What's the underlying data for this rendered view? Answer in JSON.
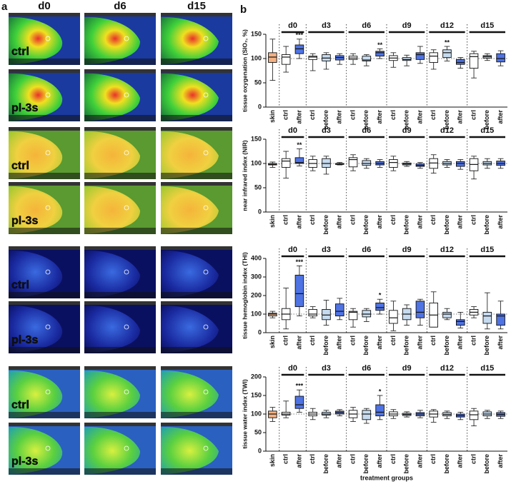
{
  "panel_a": {
    "label": "a",
    "columns": [
      "d0",
      "d6",
      "d15"
    ],
    "rows": [
      "ctrl",
      "pl-3s",
      "ctrl",
      "pl-3s",
      "ctrl",
      "pl-3s",
      "ctrl",
      "pl-3s"
    ]
  },
  "panel_b_label": "b",
  "chart_data": [
    {
      "type": "box",
      "ylabel": "tissue oxygenation (SIO₂, %)",
      "ylim": [
        0,
        150
      ],
      "yticks": [
        0,
        50,
        100,
        150
      ],
      "reference_line": 100,
      "categories": [
        "skin",
        "ctrl",
        "after",
        "ctrl",
        "before",
        "after",
        "ctrl",
        "before",
        "after",
        "ctrl",
        "before",
        "after",
        "ctrl",
        "before",
        "after",
        "ctrl",
        "before",
        "after"
      ],
      "groups": [
        "d0",
        "d3",
        "d6",
        "d9",
        "d12",
        "d15"
      ],
      "colors": {
        "skin": "#f4b183",
        "ctrl": "#ffffff",
        "before": "#c6dbef",
        "after": "#4f73e3"
      },
      "boxes": [
        [
          55,
          92,
          103,
          112,
          140
        ],
        [
          72,
          88,
          103,
          108,
          125
        ],
        [
          100,
          110,
          120,
          128,
          140
        ],
        [
          75,
          98,
          103,
          105,
          110
        ],
        [
          78,
          95,
          101,
          108,
          112
        ],
        [
          88,
          97,
          102,
          106,
          110
        ],
        [
          88,
          98,
          101,
          105,
          110
        ],
        [
          85,
          95,
          97,
          105,
          108
        ],
        [
          100,
          105,
          112,
          115,
          120
        ],
        [
          82,
          96,
          101,
          106,
          112
        ],
        [
          85,
          96,
          98,
          102,
          107
        ],
        [
          90,
          98,
          108,
          112,
          125
        ],
        [
          78,
          92,
          105,
          112,
          118
        ],
        [
          95,
          102,
          112,
          118,
          125
        ],
        [
          80,
          88,
          92,
          98,
          102
        ],
        [
          60,
          80,
          104,
          110,
          115
        ],
        [
          96,
          101,
          104,
          106,
          110
        ],
        [
          85,
          93,
          100,
          110,
          116
        ]
      ],
      "significance": [
        null,
        null,
        "***",
        null,
        null,
        null,
        null,
        null,
        "**",
        null,
        null,
        null,
        null,
        "**",
        null,
        null,
        null,
        null
      ]
    },
    {
      "type": "box",
      "ylabel": "near infrared index (NIR)",
      "ylim": [
        0,
        150
      ],
      "yticks": [
        0,
        50,
        100,
        150
      ],
      "reference_line": 100,
      "categories": [
        "skin",
        "ctrl",
        "after",
        "ctrl",
        "before",
        "after",
        "ctrl",
        "before",
        "after",
        "ctrl",
        "before",
        "after",
        "ctrl",
        "before",
        "after",
        "ctrl",
        "before",
        "after"
      ],
      "groups": [
        "d0",
        "d3",
        "d6",
        "d9",
        "d12",
        "d15"
      ],
      "colors": {
        "skin": "#f4b183",
        "ctrl": "#ffffff",
        "before": "#c6dbef",
        "after": "#4f73e3"
      },
      "boxes": [
        [
          92,
          97,
          98,
          100,
          103
        ],
        [
          70,
          92,
          105,
          110,
          125
        ],
        [
          95,
          100,
          102,
          112,
          130
        ],
        [
          85,
          92,
          100,
          108,
          115
        ],
        [
          78,
          92,
          100,
          110,
          115
        ],
        [
          97,
          98,
          99,
          100,
          102
        ],
        [
          85,
          93,
          108,
          112,
          118
        ],
        [
          90,
          96,
          100,
          106,
          110
        ],
        [
          92,
          97,
          100,
          104,
          108
        ],
        [
          85,
          92,
          102,
          108,
          115
        ],
        [
          94,
          97,
          99,
          101,
          104
        ],
        [
          90,
          94,
          96,
          99,
          102
        ],
        [
          80,
          90,
          101,
          110,
          118
        ],
        [
          92,
          97,
          100,
          104,
          108
        ],
        [
          88,
          94,
          100,
          104,
          108
        ],
        [
          68,
          85,
          98,
          110,
          115
        ],
        [
          90,
          97,
          100,
          104,
          110
        ],
        [
          90,
          96,
          100,
          105,
          110
        ]
      ],
      "significance": [
        null,
        null,
        "**",
        null,
        null,
        null,
        null,
        null,
        null,
        null,
        null,
        null,
        null,
        null,
        null,
        null,
        null,
        null
      ]
    },
    {
      "type": "box",
      "ylabel": "tissue hemoglobin index (THI)",
      "ylim": [
        0,
        400
      ],
      "yticks": [
        0,
        100,
        200,
        300,
        400
      ],
      "reference_line": 100,
      "categories": [
        "skin",
        "ctrl",
        "after",
        "ctrl",
        "before",
        "after",
        "ctrl",
        "before",
        "after",
        "ctrl",
        "before",
        "after",
        "ctrl",
        "before",
        "after",
        "ctrl",
        "before",
        "after"
      ],
      "groups": [
        "d0",
        "d3",
        "d6",
        "d9",
        "d12",
        "d15"
      ],
      "colors": {
        "skin": "#f4b183",
        "ctrl": "#ffffff",
        "before": "#c6dbef",
        "after": "#4f73e3"
      },
      "boxes": [
        [
          80,
          90,
          100,
          105,
          115
        ],
        [
          20,
          70,
          100,
          130,
          240
        ],
        [
          90,
          140,
          210,
          310,
          360
        ],
        [
          80,
          90,
          100,
          125,
          140
        ],
        [
          40,
          70,
          95,
          125,
          175
        ],
        [
          70,
          90,
          115,
          155,
          185
        ],
        [
          30,
          70,
          110,
          115,
          130
        ],
        [
          60,
          85,
          100,
          120,
          130
        ],
        [
          100,
          120,
          135,
          160,
          180
        ],
        [
          10,
          50,
          80,
          120,
          170
        ],
        [
          40,
          70,
          100,
          130,
          150
        ],
        [
          40,
          80,
          110,
          170,
          180
        ],
        [
          30,
          30,
          95,
          160,
          220
        ],
        [
          70,
          80,
          100,
          110,
          130
        ],
        [
          25,
          40,
          60,
          70,
          110
        ],
        [
          80,
          95,
          110,
          125,
          140
        ],
        [
          20,
          50,
          90,
          110,
          215
        ],
        [
          20,
          40,
          90,
          100,
          170
        ]
      ],
      "significance": [
        null,
        null,
        "***",
        null,
        null,
        null,
        null,
        null,
        "*",
        null,
        null,
        null,
        null,
        null,
        null,
        null,
        null,
        null
      ]
    },
    {
      "type": "box",
      "ylabel": "tissue water index (TWI)",
      "xlabel": "treatment groups",
      "ylim": [
        0,
        200
      ],
      "yticks": [
        0,
        50,
        100,
        150,
        200
      ],
      "reference_line": 100,
      "categories": [
        "skin",
        "ctrl",
        "after",
        "ctrl",
        "before",
        "after",
        "ctrl",
        "before",
        "after",
        "ctrl",
        "before",
        "after",
        "ctrl",
        "before",
        "after",
        "ctrl",
        "before",
        "after"
      ],
      "groups": [
        "d0",
        "d3",
        "d6",
        "d9",
        "d12",
        "d15"
      ],
      "colors": {
        "skin": "#f4b183",
        "ctrl": "#ffffff",
        "before": "#c6dbef",
        "after": "#4f73e3"
      },
      "boxes": [
        [
          80,
          90,
          100,
          108,
          118
        ],
        [
          90,
          97,
          100,
          105,
          135
        ],
        [
          105,
          115,
          125,
          148,
          165
        ],
        [
          85,
          95,
          100,
          105,
          115
        ],
        [
          90,
          97,
          100,
          105,
          110
        ],
        [
          95,
          100,
          104,
          108,
          112
        ],
        [
          80,
          90,
          100,
          110,
          118
        ],
        [
          75,
          85,
          100,
          110,
          115
        ],
        [
          85,
          95,
          105,
          125,
          150
        ],
        [
          88,
          95,
          100,
          106,
          112
        ],
        [
          92,
          96,
          99,
          102,
          106
        ],
        [
          90,
          95,
          100,
          104,
          110
        ],
        [
          78,
          92,
          100,
          108,
          112
        ],
        [
          88,
          95,
          99,
          104,
          108
        ],
        [
          85,
          92,
          96,
          100,
          105
        ],
        [
          68,
          85,
          98,
          108,
          115
        ],
        [
          88,
          95,
          100,
          106,
          110
        ],
        [
          88,
          94,
          99,
          104,
          108
        ]
      ],
      "significance": [
        null,
        null,
        "***",
        null,
        null,
        null,
        null,
        null,
        "*",
        null,
        null,
        null,
        null,
        null,
        null,
        null,
        null,
        null
      ]
    }
  ]
}
